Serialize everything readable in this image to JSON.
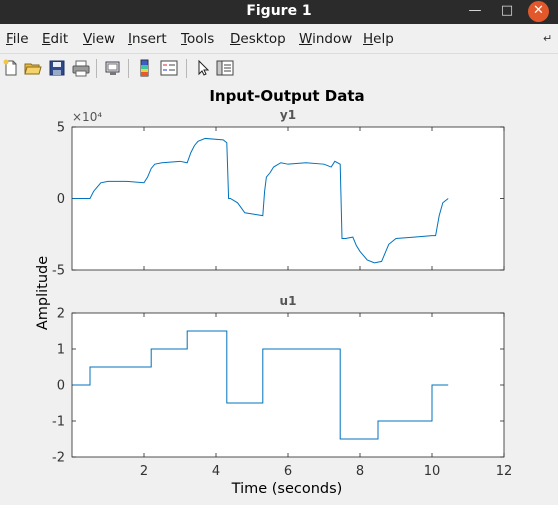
{
  "window": {
    "title": "Figure 1"
  },
  "menu": [
    {
      "key": "F",
      "rest": "ile"
    },
    {
      "key": "E",
      "rest": "dit"
    },
    {
      "key": "V",
      "rest": "iew"
    },
    {
      "key": "I",
      "rest": "nsert"
    },
    {
      "key": "T",
      "rest": "ools"
    },
    {
      "key": "D",
      "rest": "esktop"
    },
    {
      "key": "W",
      "rest": "indow"
    },
    {
      "key": "H",
      "rest": "elp"
    }
  ],
  "toolbar": [
    "new-file-icon",
    "open-folder-icon",
    "save-icon",
    "print-icon",
    "link-plot-icon",
    "colorbar-icon",
    "legend-icon",
    "pointer-icon",
    "property-editor-icon"
  ],
  "figure": {
    "title": "Input-Output Data",
    "ylabel": "Amplitude",
    "xlabel": "Time (seconds)",
    "line_color": "#0072bd"
  },
  "chart_data": [
    {
      "type": "line",
      "title": "y1",
      "exponent_label": "×10⁴",
      "xlim": [
        0,
        12
      ],
      "ylim": [
        -5,
        5
      ],
      "yticks": [
        "5",
        "0",
        "-5"
      ],
      "x": [
        0,
        0.5,
        0.6,
        0.7,
        0.8,
        1.0,
        1.5,
        2.0,
        2.1,
        2.2,
        2.3,
        2.5,
        3.0,
        3.2,
        3.3,
        3.4,
        3.5,
        3.7,
        4.2,
        4.3,
        4.35,
        4.4,
        4.6,
        4.8,
        5.3,
        5.35,
        5.4,
        5.5,
        5.6,
        5.8,
        6.0,
        6.5,
        7.0,
        7.2,
        7.3,
        7.45,
        7.5,
        7.6,
        7.8,
        7.9,
        8.0,
        8.2,
        8.4,
        8.6,
        8.7,
        8.8,
        9.0,
        9.5,
        10.0,
        10.1,
        10.2,
        10.3,
        10.45
      ],
      "y": [
        0,
        0,
        0.5,
        0.8,
        1.1,
        1.2,
        1.2,
        1.1,
        1.5,
        2.1,
        2.4,
        2.5,
        2.6,
        2.5,
        3.2,
        3.7,
        4.0,
        4.2,
        4.1,
        3.9,
        0,
        0,
        -0.3,
        -1.0,
        -1.2,
        0.5,
        1.5,
        1.8,
        2.2,
        2.5,
        2.4,
        2.5,
        2.4,
        2.2,
        2.6,
        2.4,
        -2.8,
        -2.8,
        -2.7,
        -3.3,
        -3.7,
        -4.3,
        -4.5,
        -4.4,
        -3.8,
        -3.2,
        -2.8,
        -2.7,
        -2.6,
        -2.6,
        -1.2,
        -0.3,
        0
      ]
    },
    {
      "type": "line",
      "step": true,
      "title": "u1",
      "xlim": [
        0,
        12
      ],
      "ylim": [
        -2,
        2
      ],
      "yticks": [
        "2",
        "1",
        "0",
        "-1",
        "-2"
      ],
      "xticks": [
        "2",
        "4",
        "6",
        "8",
        "10",
        "12"
      ],
      "x": [
        0,
        0.5,
        2.2,
        3.2,
        4.3,
        5.3,
        7.45,
        8.5,
        10.0,
        10.45
      ],
      "y": [
        0,
        0.5,
        1.0,
        1.5,
        -0.5,
        1.0,
        -1.5,
        -1.0,
        0,
        0
      ]
    }
  ]
}
